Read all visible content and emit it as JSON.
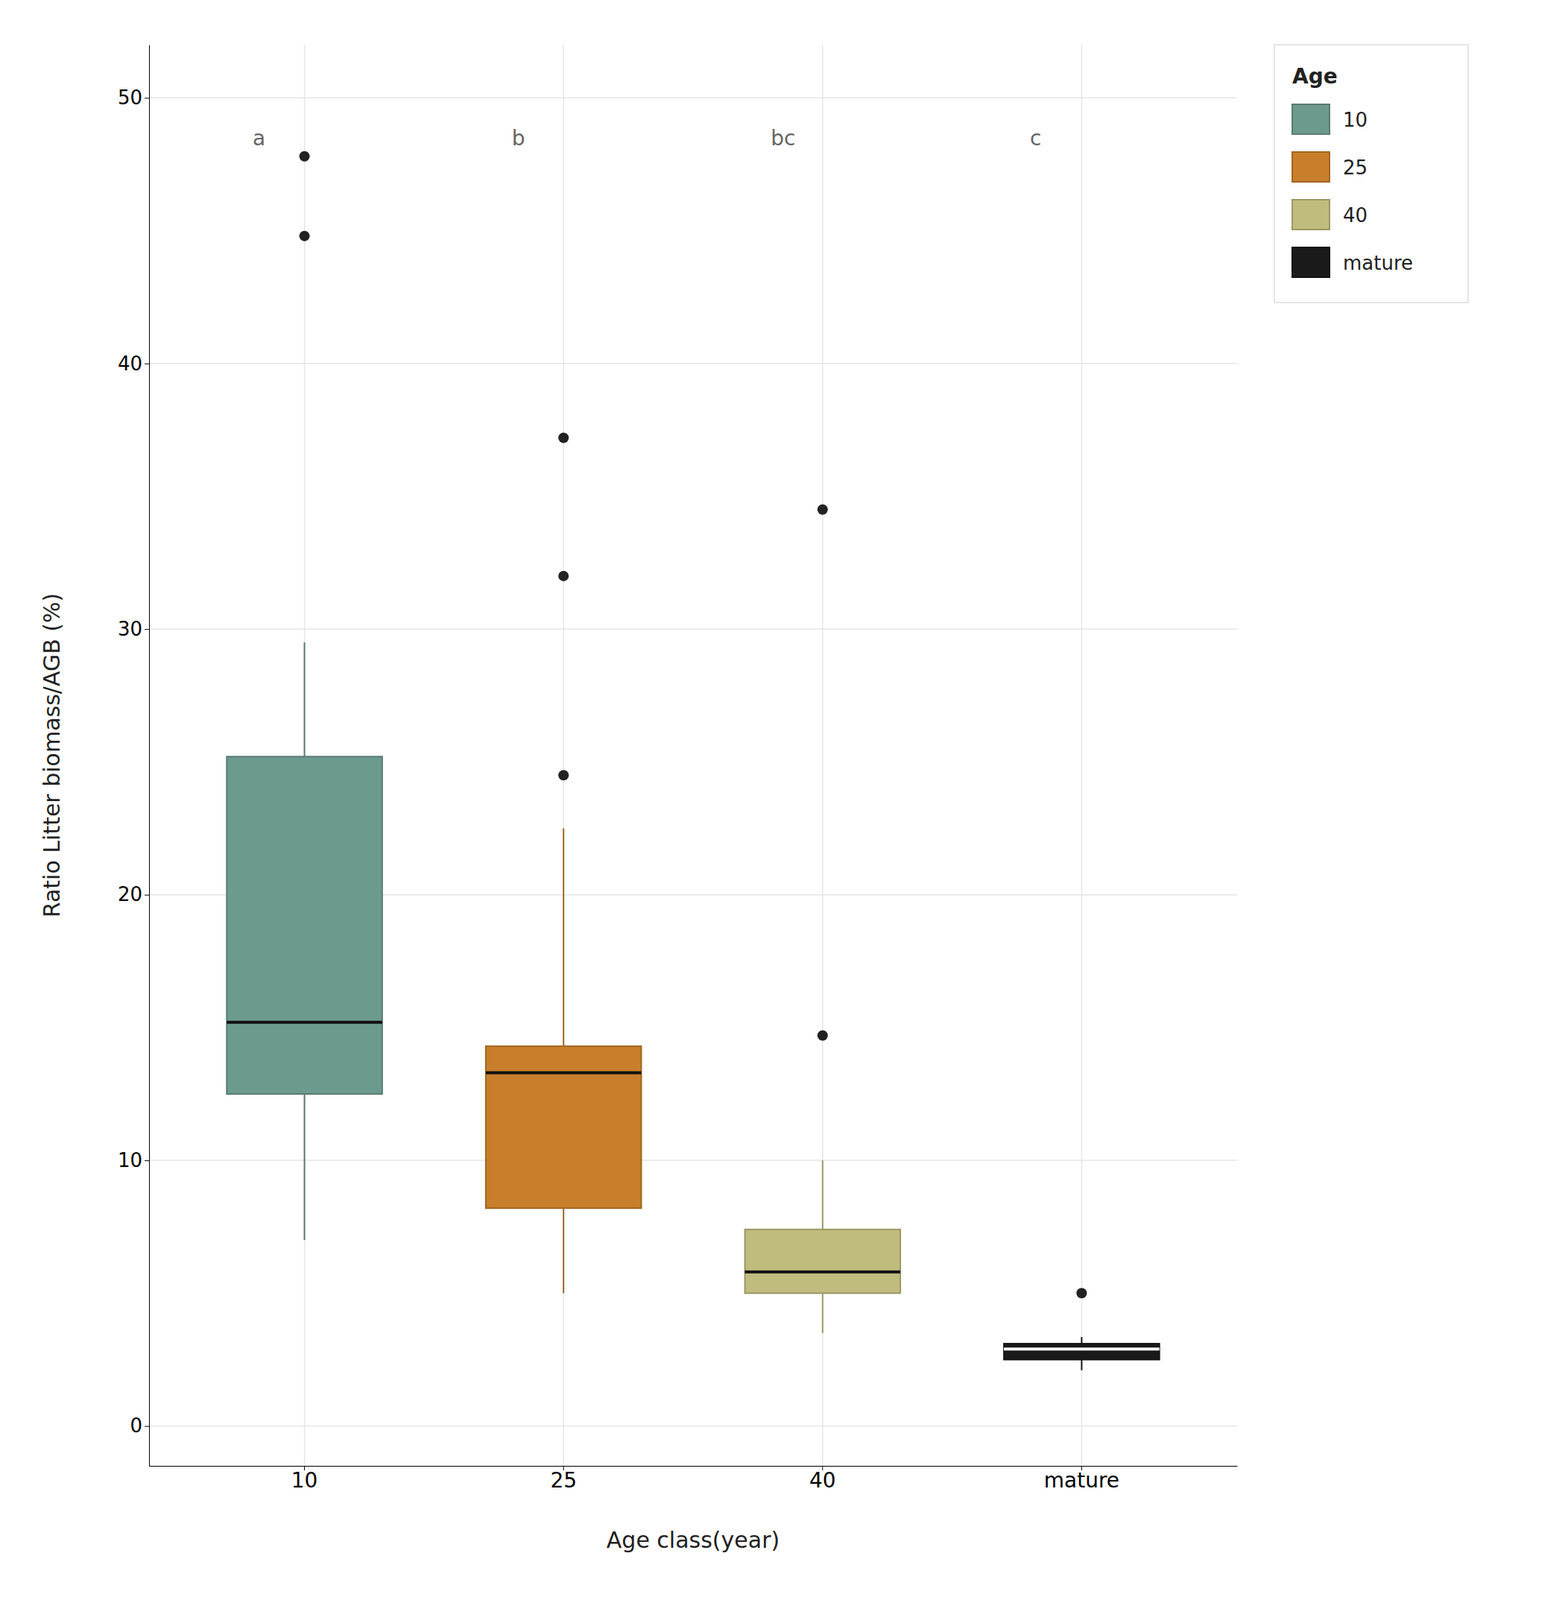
{
  "chart_data": {
    "type": "box",
    "xlabel": "Age class(year)",
    "ylabel": "Ratio Litter biomass/AGB (%)",
    "categories": [
      "10",
      "25",
      "40",
      "mature"
    ],
    "colors": [
      "#6d9a8e",
      "#c87e2a",
      "#c0bc7d",
      "#1a1a1a"
    ],
    "medians": [
      15.2,
      13.3,
      5.8,
      2.9
    ],
    "q1": [
      12.5,
      8.2,
      5.0,
      2.5
    ],
    "q3": [
      25.2,
      14.3,
      7.4,
      3.1
    ],
    "whisker_low": [
      7.0,
      5.0,
      3.5,
      2.1
    ],
    "whisker_high": [
      29.5,
      22.5,
      10.0,
      3.35
    ],
    "outliers": [
      [
        47.8,
        44.8
      ],
      [
        37.2,
        32.0,
        24.5
      ],
      [
        34.5,
        14.7
      ],
      [
        5.0
      ]
    ],
    "annotations": [
      {
        "text": "a",
        "y": 48.2
      },
      {
        "text": "b",
        "y": 48.2
      },
      {
        "text": "bc",
        "y": 48.2
      },
      {
        "text": "c",
        "y": 48.2
      }
    ],
    "ylim": [
      -1.5,
      52
    ],
    "yticks": [
      0,
      10,
      20,
      30,
      40,
      50
    ],
    "grid": true,
    "legend": "right",
    "legend_title": "Age",
    "legend_labels": [
      "10",
      "25",
      "40",
      "mature"
    ]
  }
}
